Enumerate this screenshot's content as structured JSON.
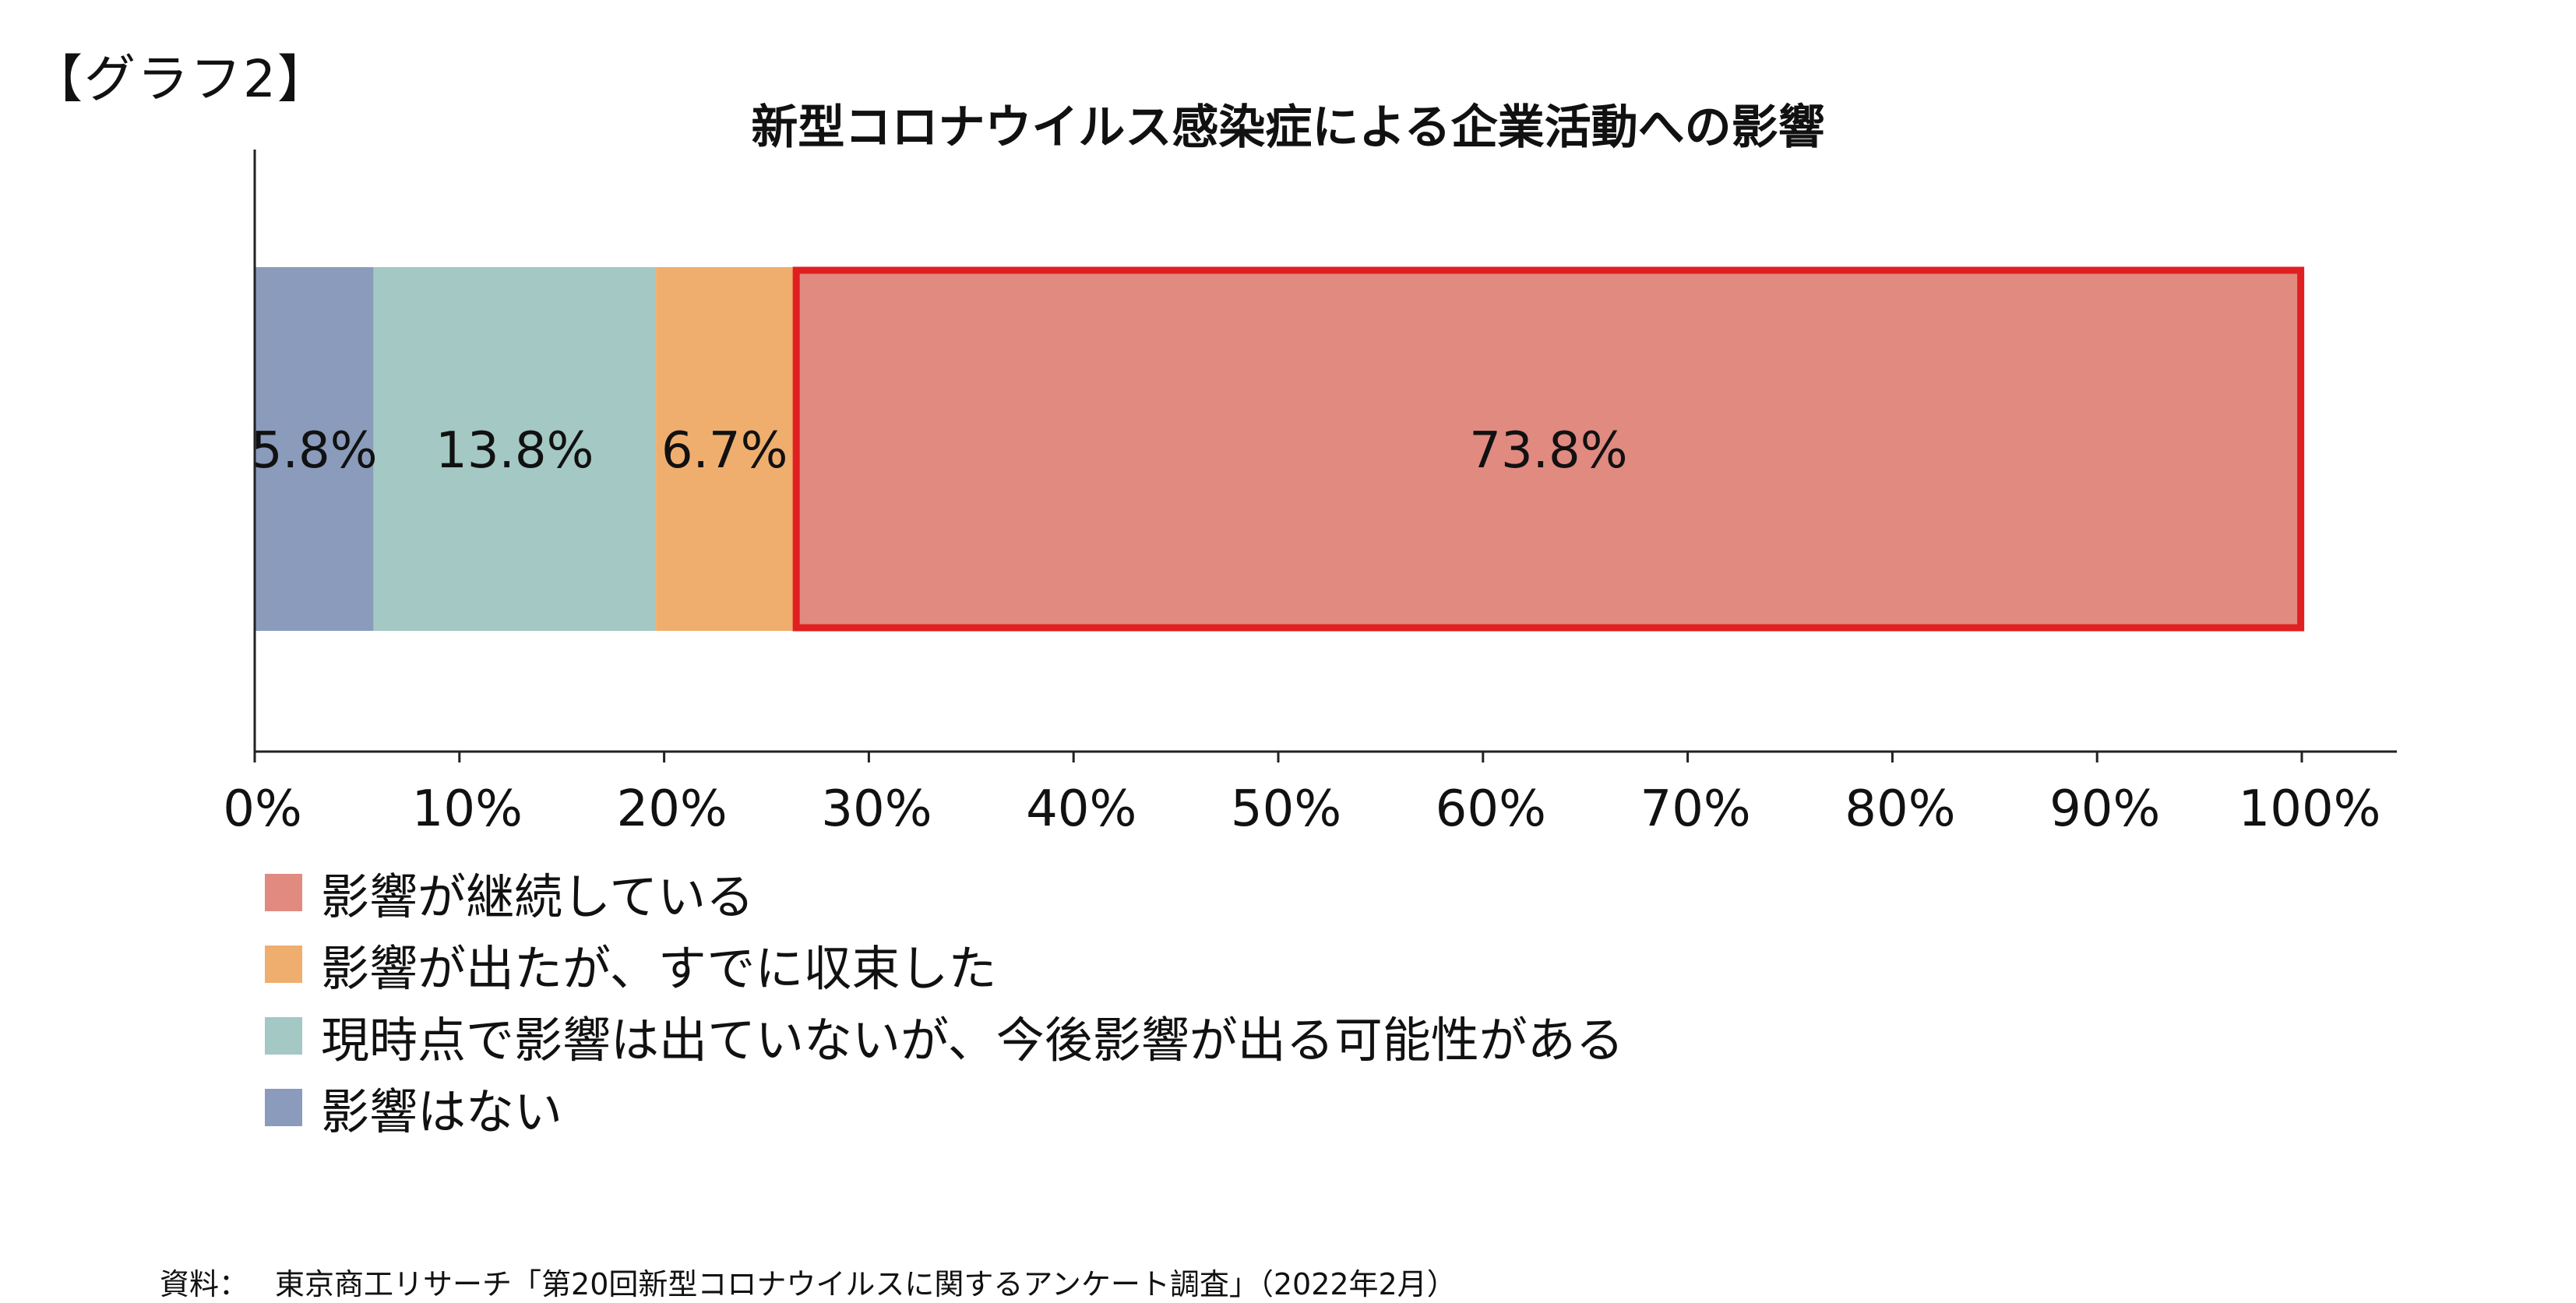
{
  "header": {
    "graph_label": "【グラフ2】"
  },
  "chart_data": {
    "type": "bar",
    "orientation": "horizontal",
    "stacked": true,
    "title": "新型コロナウイルス感染症による企業活動への影響",
    "xlim": [
      0,
      100
    ],
    "x_ticks": [
      "0%",
      "10%",
      "20%",
      "30%",
      "40%",
      "50%",
      "60%",
      "70%",
      "80%",
      "90%",
      "100%"
    ],
    "series": [
      {
        "name": "影響はない",
        "value": 5.8,
        "label": "5.8%",
        "color": "#8a9bbb"
      },
      {
        "name": "現時点で影響は出ていないが、今後影響が出る可能性がある",
        "value": 13.8,
        "label": "13.8%",
        "color": "#a4c8c3"
      },
      {
        "name": "影響が出たが、すでに収束した",
        "value": 6.7,
        "label": "6.7%",
        "color": "#efae6e"
      },
      {
        "name": "影響が継続している",
        "value": 73.8,
        "label": "73.8%",
        "color": "#e18a80",
        "highlight": true,
        "highlight_color": "#e02020"
      }
    ],
    "legend": [
      {
        "label": "影響が継続している",
        "color": "#e18a80"
      },
      {
        "label": "影響が出たが、すでに収束した",
        "color": "#efae6e"
      },
      {
        "label": "現時点で影響は出ていないが、今後影響が出る可能性がある",
        "color": "#a4c8c3"
      },
      {
        "label": "影響はない",
        "color": "#8a9bbb"
      }
    ],
    "legend_placement": "bottom-left",
    "grid": false
  },
  "source": {
    "label": "資料：",
    "text": "東京商工リサーチ「第20回新型コロナウイルスに関するアンケート調査」（2022年2月）"
  }
}
